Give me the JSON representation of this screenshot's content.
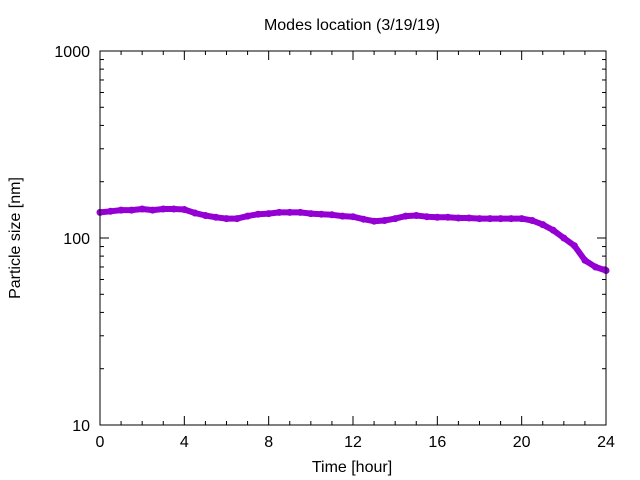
{
  "chart_data": {
    "type": "line",
    "title": "Modes location (3/19/19)",
    "xlabel": "Time [hour]",
    "ylabel": "Particle size [nm]",
    "xlim": [
      0,
      24
    ],
    "ylim": [
      10,
      1000
    ],
    "yscale": "log",
    "grid": false,
    "x_ticks": [
      "0",
      "4",
      "8",
      "12",
      "16",
      "20",
      "24"
    ],
    "y_ticks": [
      "10",
      "100",
      "1000"
    ],
    "line_color": "#9400d3",
    "series": [
      {
        "x": [
          0,
          0.5,
          1,
          1.5,
          2,
          2.5,
          3,
          3.5,
          4,
          4.5,
          5,
          5.5,
          6,
          6.5,
          7,
          7.5,
          8,
          8.5,
          9,
          9.5,
          10,
          10.5,
          11,
          11.5,
          12,
          12.5,
          13,
          13.5,
          14,
          14.5,
          15,
          15.5,
          16,
          16.5,
          17,
          17.5,
          18,
          18.5,
          19,
          19.5,
          20,
          20.5,
          21,
          21.5,
          22,
          22.5,
          23,
          23.5,
          24
        ],
        "y": [
          137,
          139,
          141,
          141,
          143,
          141,
          143,
          143,
          142,
          136,
          132,
          129,
          127,
          127,
          131,
          134,
          135,
          137,
          137,
          137,
          135,
          134,
          133,
          131,
          130,
          126,
          123,
          124,
          127,
          131,
          132,
          130,
          129,
          129,
          128,
          128,
          127,
          127,
          127,
          127,
          127,
          124,
          118,
          110,
          100,
          91,
          76,
          70,
          67
        ]
      }
    ]
  }
}
